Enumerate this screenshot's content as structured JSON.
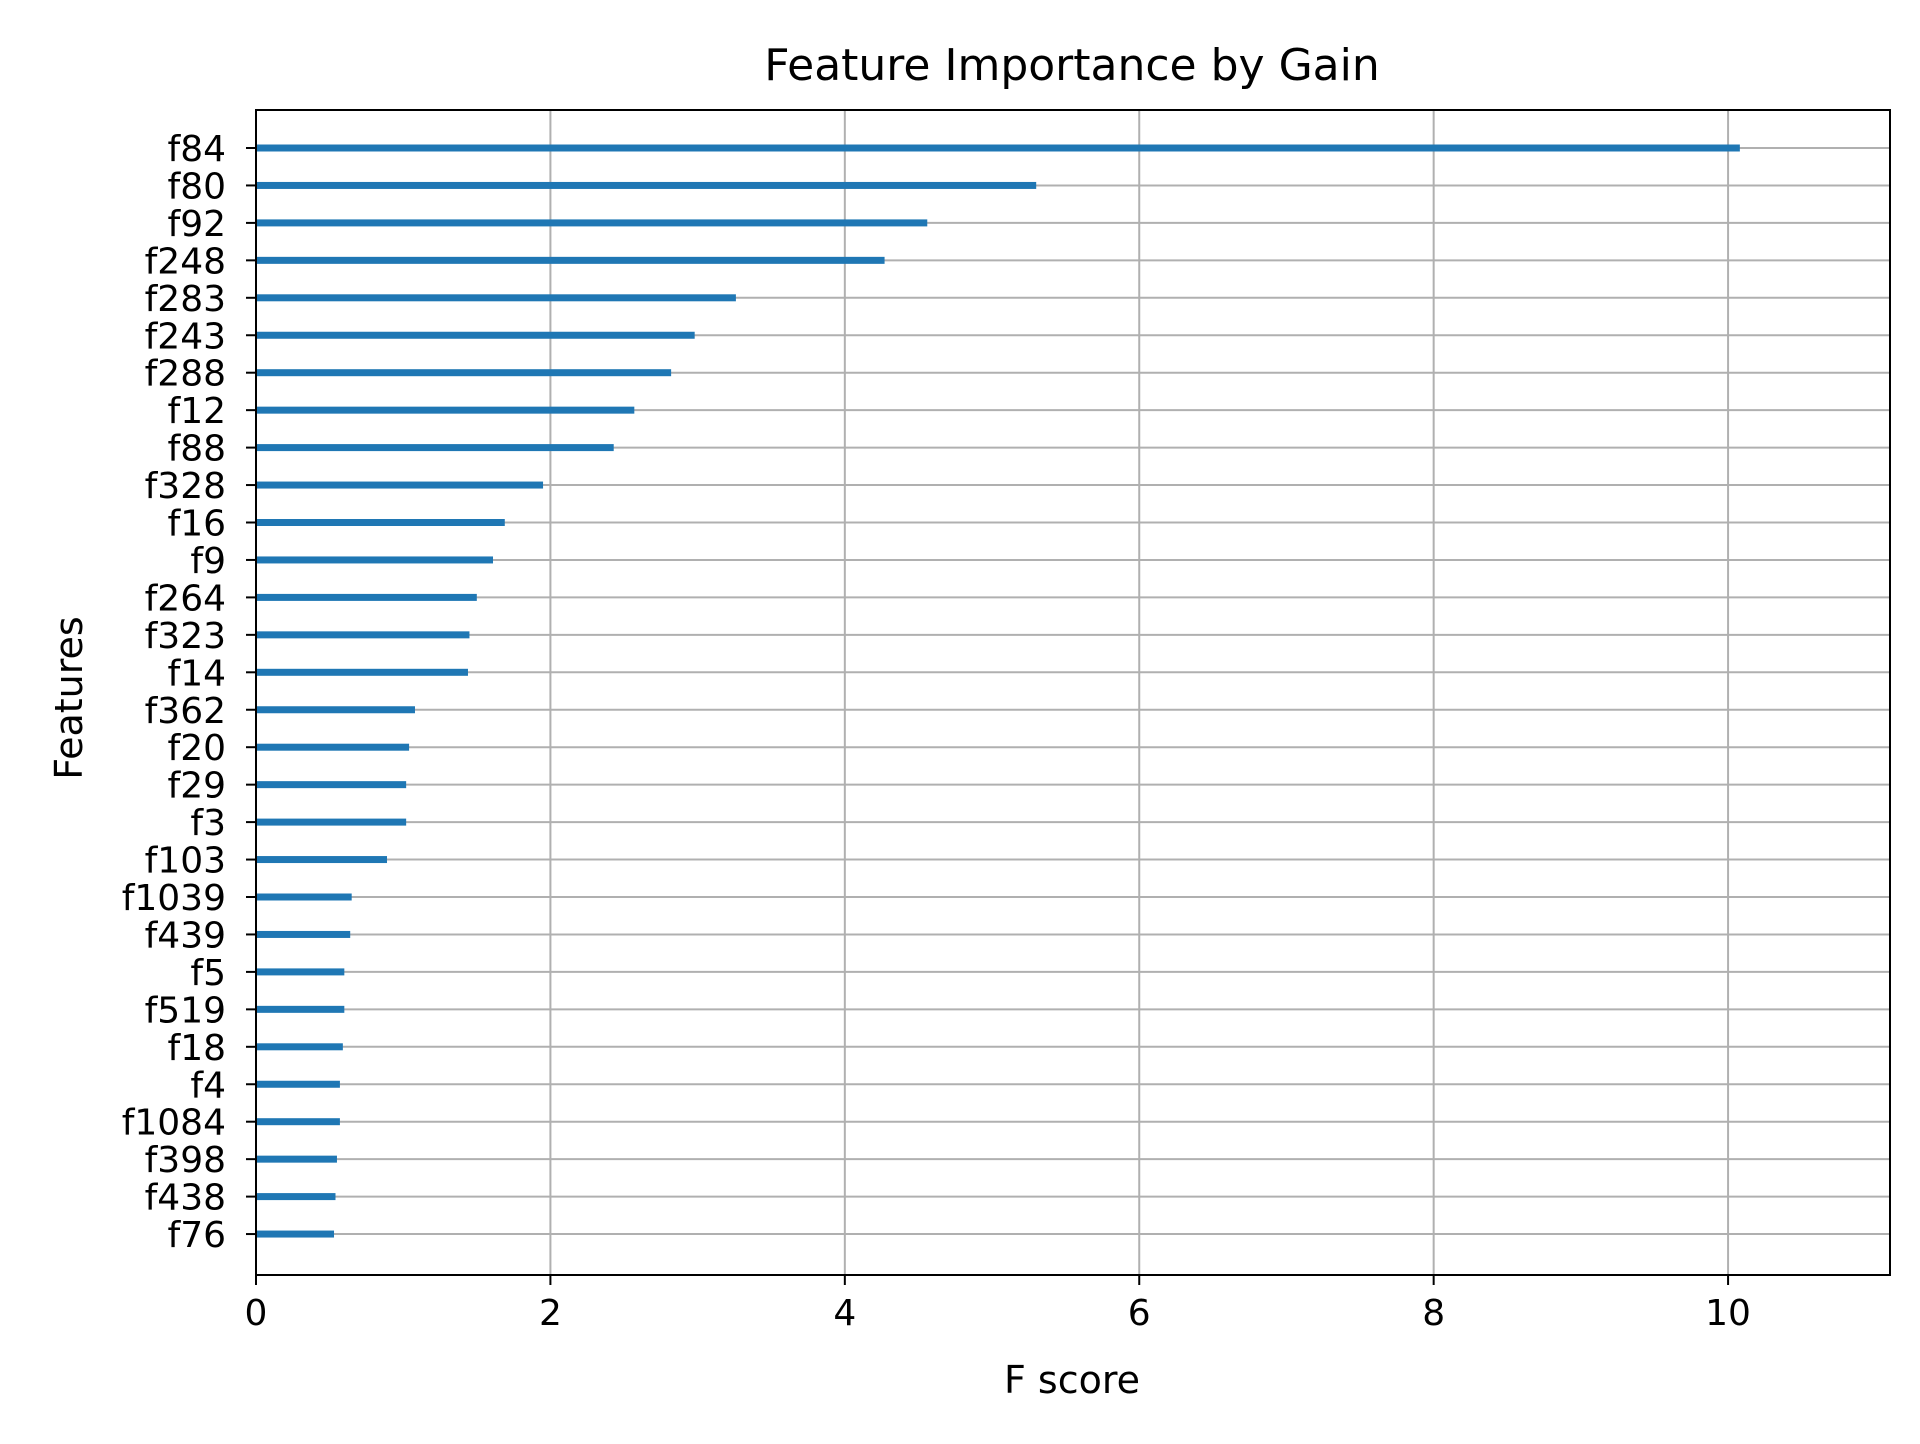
{
  "chart_data": {
    "type": "bar",
    "orientation": "horizontal",
    "title": "Feature Importance by Gain",
    "xlabel": "F score",
    "ylabel": "Features",
    "xlim": [
      0,
      11.1
    ],
    "xticks": [
      "0",
      "2",
      "4",
      "6",
      "8",
      "10"
    ],
    "grid": true,
    "categories": [
      "f84",
      "f80",
      "f92",
      "f248",
      "f283",
      "f243",
      "f288",
      "f12",
      "f88",
      "f328",
      "f16",
      "f9",
      "f264",
      "f323",
      "f14",
      "f362",
      "f20",
      "f29",
      "f3",
      "f103",
      "f1039",
      "f439",
      "f5",
      "f519",
      "f18",
      "f4",
      "f1084",
      "f398",
      "f438",
      "f76"
    ],
    "values": [
      10.08,
      5.3,
      4.56,
      4.27,
      3.26,
      2.98,
      2.82,
      2.57,
      2.43,
      1.95,
      1.69,
      1.61,
      1.5,
      1.45,
      1.44,
      1.08,
      1.04,
      1.02,
      1.02,
      0.89,
      0.65,
      0.64,
      0.6,
      0.6,
      0.59,
      0.57,
      0.57,
      0.55,
      0.54,
      0.53
    ],
    "colors": {
      "bar": "#1f77b4",
      "grid": "#b0b0b0",
      "axes": "#000000"
    }
  }
}
